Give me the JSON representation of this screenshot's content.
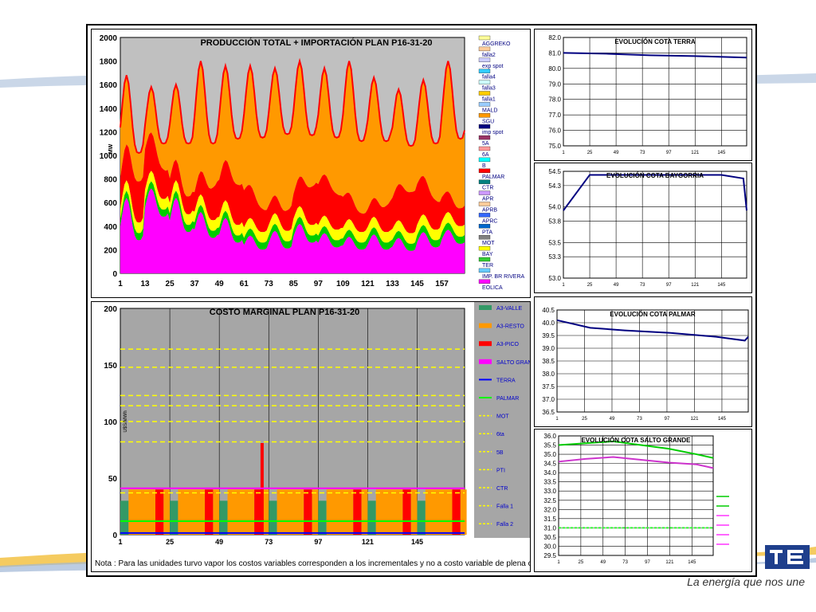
{
  "brand": {
    "tagline": "La energía que nos une"
  },
  "note": "Nota : Para las unidades turvo vapor los costos variables corresponden a los incrementales y no a costo variable de plena carga",
  "colors": {
    "grid_bg": "#c0c0c0",
    "frame": "#000000"
  },
  "chart_data": [
    {
      "id": "produccion",
      "type": "area",
      "title": "PRODUCCIÓN TOTAL + IMPORTACIÓN PLAN    P16-31-20",
      "ylabel": "MW",
      "ylim": [
        0,
        2000
      ],
      "xlim": [
        1,
        168
      ],
      "yticks": [
        "0",
        "200",
        "400",
        "600",
        "800",
        "1000",
        "1200",
        "1400",
        "1600",
        "1800",
        "2000"
      ],
      "xticks": [
        "1",
        "13",
        "25",
        "37",
        "49",
        "61",
        "73",
        "85",
        "97",
        "109",
        "121",
        "133",
        "145",
        "157"
      ],
      "legend": [
        "AGGREKO",
        "falla2",
        "exp spot",
        "falla4",
        "falla3",
        "falla1",
        "MALD",
        "SGU",
        "imp spot",
        "5A",
        "6A",
        "B",
        "PALMAR",
        "CTR",
        "APR",
        "APRB",
        "APRC",
        "PTA",
        "MOT",
        "BAY",
        "TER",
        "IMP. BR RIVERA",
        "EOLICA"
      ],
      "legend_colors": [
        "#ffff99",
        "#ffcc99",
        "#ccccff",
        "#33ccff",
        "#ccffff",
        "#ffcc00",
        "#99ccff",
        "#ff9900",
        "#000080",
        "#993366",
        "#ff9999",
        "#00ffff",
        "#ff0000",
        "#008080",
        "#cc99ff",
        "#ffcc99",
        "#3366ff",
        "#0066cc",
        "#808080",
        "#ffff00",
        "#33cc33",
        "#66ccff",
        "#ff00ff"
      ],
      "series": [
        {
          "name": "EOLICA",
          "peak_days": [
            640,
            720,
            640,
            520,
            470,
            320,
            360,
            420,
            340,
            310,
            330,
            300,
            350,
            370
          ],
          "valley": [
            280,
            480,
            350,
            300,
            260,
            200,
            210,
            260,
            220,
            200,
            200,
            190,
            220,
            250
          ]
        },
        {
          "name": "TER",
          "offset": 60
        },
        {
          "name": "BAY",
          "offset": 90
        },
        {
          "name": "PALMAR",
          "offset": 250
        },
        {
          "name": "SGU",
          "daily_peak": [
            1680,
            1580,
            1600,
            1800,
            1760,
            1760,
            1740,
            1800,
            1740,
            1800,
            1660,
            1560,
            1640,
            1800
          ],
          "daily_valley": [
            1020,
            1100,
            1100,
            1100,
            1140,
            1150,
            1180,
            1170,
            1150,
            1120,
            1120,
            1080,
            1100,
            1140
          ]
        }
      ]
    },
    {
      "id": "costo",
      "type": "bar",
      "title": "COSTO MARGINAL PLAN    P16-31-20",
      "ylabel": "U$S/MWh",
      "ylim": [
        0,
        200
      ],
      "xticks": [
        "1",
        "25",
        "49",
        "73",
        "97",
        "121",
        "145"
      ],
      "yticks": [
        "0",
        "50",
        "100",
        "150",
        "200"
      ],
      "base_value": 40,
      "spike": {
        "x": 69,
        "value": 81
      },
      "threshold_lines": [
        164,
        148,
        123,
        114,
        100,
        82,
        37
      ],
      "green_line": 12,
      "magenta_line": 41,
      "legend": [
        "A3-VALLE",
        "A3-RESTO",
        "A3-PICO",
        "SALTO GRANDE",
        "TERRA",
        "PALMAR",
        "MOT",
        "6ta",
        "5B",
        "PTI",
        "CTR",
        "Falla 1",
        "Falla 2"
      ],
      "legend_colors": [
        "#339966",
        "#ff9900",
        "#ff0000",
        "#ff00ff",
        "#0000ff",
        "#00ff00",
        "#ffff00",
        "#ffff00",
        "#ffff00",
        "#ffff00",
        "#ffff00",
        "#ffff00",
        "#ffff00"
      ]
    },
    {
      "id": "terra",
      "type": "line",
      "title": "EVOLUCIÓN COTA TERRA",
      "ylim": [
        75.0,
        82.0
      ],
      "yticks": [
        "75.0",
        "76.0",
        "77.0",
        "78.0",
        "79.0",
        "80.0",
        "81.0",
        "82.0"
      ],
      "xticks": [
        "1",
        "25",
        "49",
        "73",
        "97",
        "121",
        "145"
      ],
      "series": [
        {
          "x": [
            1,
            40,
            80,
            120,
            168
          ],
          "y": [
            81.0,
            80.95,
            80.85,
            80.8,
            80.7
          ]
        }
      ]
    },
    {
      "id": "baygorria",
      "type": "line",
      "title": "EVOLUCIÓN COTA BAYGORRIA",
      "ylim": [
        53.0,
        54.5
      ],
      "yticks": [
        "53.0",
        "53.3",
        "53.5",
        "53.8",
        "54.0",
        "54.3",
        "54.5"
      ],
      "xticks": [
        "1",
        "25",
        "49",
        "73",
        "97",
        "121",
        "145"
      ],
      "series": [
        {
          "x": [
            1,
            25,
            145,
            165,
            168
          ],
          "y": [
            53.95,
            54.45,
            54.45,
            54.4,
            53.95
          ]
        }
      ]
    },
    {
      "id": "palmar",
      "type": "line",
      "title": "EVOLUCIÓN COTA PALMAR",
      "ylim": [
        36.5,
        40.5
      ],
      "yticks": [
        "36.5",
        "37.0",
        "37.5",
        "38.0",
        "38.5",
        "39.0",
        "39.5",
        "40.0",
        "40.5"
      ],
      "xticks": [
        "1",
        "25",
        "49",
        "73",
        "97",
        "121",
        "145"
      ],
      "series": [
        {
          "x": [
            1,
            30,
            60,
            100,
            140,
            165,
            168
          ],
          "y": [
            40.1,
            39.8,
            39.7,
            39.6,
            39.45,
            39.3,
            39.45
          ]
        }
      ]
    },
    {
      "id": "salto",
      "type": "line",
      "title": "EVOLUCIÓN COTA SALTO GRANDE",
      "ylim": [
        29.5,
        36.0
      ],
      "yticks": [
        "29.5",
        "30.0",
        "30.5",
        "31.0",
        "31.5",
        "32.0",
        "32.5",
        "33.0",
        "33.5",
        "34.0",
        "34.5",
        "35.0",
        "35.5",
        "36.0"
      ],
      "xticks": [
        "1",
        "25",
        "49",
        "73",
        "97",
        "121",
        "145"
      ],
      "series": [
        {
          "x": [
            1,
            30,
            60,
            90,
            120,
            150,
            168
          ],
          "y": [
            35.5,
            35.6,
            35.7,
            35.5,
            35.3,
            35.0,
            34.8
          ]
        },
        {
          "x": [
            1,
            30,
            60,
            90,
            120,
            150,
            168
          ],
          "y": [
            34.6,
            34.75,
            34.85,
            34.7,
            34.55,
            34.45,
            34.25
          ]
        },
        {
          "x": [
            1,
            168
          ],
          "y": [
            31.0,
            31.0
          ]
        }
      ]
    }
  ]
}
